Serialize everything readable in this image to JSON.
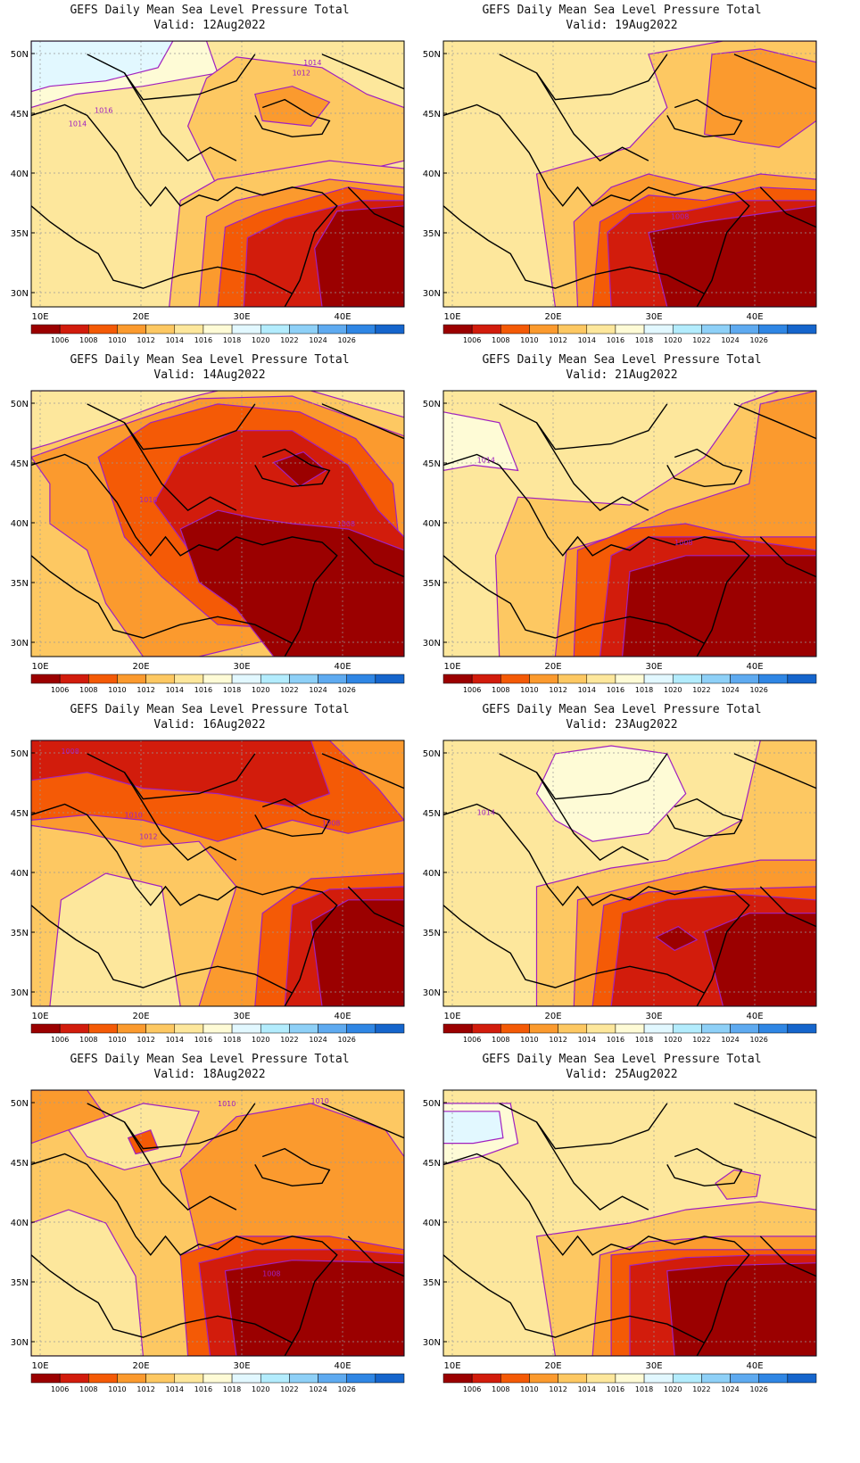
{
  "figure": {
    "title": "GEFS Daily Mean Sea Level Pressure Total",
    "lat_labels": [
      "50N",
      "45N",
      "40N",
      "35N",
      "30N"
    ],
    "lon_labels": [
      "10E",
      "20E",
      "30E",
      "40E"
    ],
    "colorbar": {
      "levels": [
        "1006",
        "1008",
        "1010",
        "1012",
        "1014",
        "1016",
        "1018",
        "1020",
        "1022",
        "1024",
        "1026"
      ],
      "colors": [
        "#9b0000",
        "#d21c0c",
        "#f45a06",
        "#fb9a2e",
        "#fdc862",
        "#fde79c",
        "#fefbd6",
        "#e2f8ff",
        "#b3ecfd",
        "#8ed0f7",
        "#5eaaf0",
        "#2f86e4",
        "#1565cc"
      ]
    }
  },
  "panels": [
    {
      "valid": "Valid:  12Aug2022",
      "contour_labels": [
        "1014",
        "1012",
        "1016",
        "1014"
      ]
    },
    {
      "valid": "Valid:  19Aug2022",
      "contour_labels": [
        "1008"
      ]
    },
    {
      "valid": "Valid:  14Aug2022",
      "contour_labels": [
        "1010",
        "1008"
      ]
    },
    {
      "valid": "Valid:  21Aug2022",
      "contour_labels": [
        "1014",
        "1008"
      ]
    },
    {
      "valid": "Valid:  16Aug2022",
      "contour_labels": [
        "1008",
        "1010",
        "1012",
        "1008"
      ]
    },
    {
      "valid": "Valid:  23Aug2022",
      "contour_labels": [
        "1014"
      ]
    },
    {
      "valid": "Valid:  18Aug2022",
      "contour_labels": [
        "1010",
        "1010",
        "1008"
      ]
    },
    {
      "valid": "Valid:  25Aug2022",
      "contour_labels": []
    }
  ]
}
